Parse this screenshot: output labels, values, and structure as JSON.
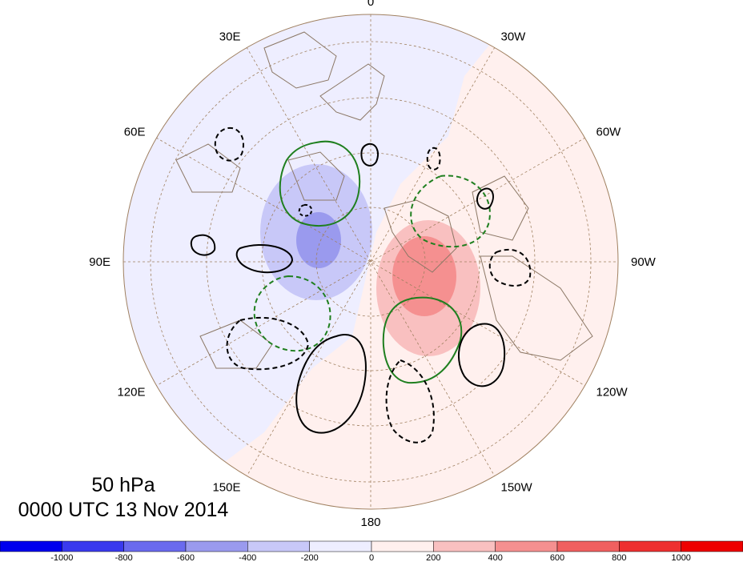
{
  "map": {
    "longitude_labels": [
      {
        "name": "lon-0",
        "text": "0",
        "angle_deg": 0
      },
      {
        "name": "lon-30w",
        "text": "30W",
        "angle_deg": 30
      },
      {
        "name": "lon-60w",
        "text": "60W",
        "angle_deg": 60
      },
      {
        "name": "lon-90w",
        "text": "90W",
        "angle_deg": 90
      },
      {
        "name": "lon-120w",
        "text": "120W",
        "angle_deg": 120
      },
      {
        "name": "lon-150w",
        "text": "150W",
        "angle_deg": 150
      },
      {
        "name": "lon-180",
        "text": "180",
        "angle_deg": 180
      },
      {
        "name": "lon-150e",
        "text": "150E",
        "angle_deg": 210
      },
      {
        "name": "lon-120e",
        "text": "120E",
        "angle_deg": 240
      },
      {
        "name": "lon-90e",
        "text": "90E",
        "angle_deg": 270
      },
      {
        "name": "lon-60e",
        "text": "60E",
        "angle_deg": 300
      },
      {
        "name": "lon-30e",
        "text": "30E",
        "angle_deg": 330
      }
    ],
    "projection": "north-polar-stereographic",
    "colors": {
      "coastline": "#8b7765",
      "grid": "#a08060",
      "negative_fill": "#eeeeff",
      "positive_fill": "#fff0ee",
      "positive_contour": "#1f7f1f",
      "negative_contour": "#1f7f1f",
      "black_contour": "#000000"
    }
  },
  "caption": {
    "level": "50 hPa",
    "time": "0000 UTC 13 Nov 2014"
  },
  "colorbar": {
    "tick_labels": [
      "-1000",
      "-800",
      "-600",
      "-400",
      "-200",
      "0",
      "200",
      "400",
      "600",
      "800",
      "1000"
    ],
    "colors": [
      "#0000ee",
      "#3a3aee",
      "#6a6aee",
      "#9a9aee",
      "#c8c8f8",
      "#eeeeff",
      "#fff0ee",
      "#f9c0c0",
      "#f59090",
      "#f06060",
      "#ee3030",
      "#ee0000"
    ]
  }
}
